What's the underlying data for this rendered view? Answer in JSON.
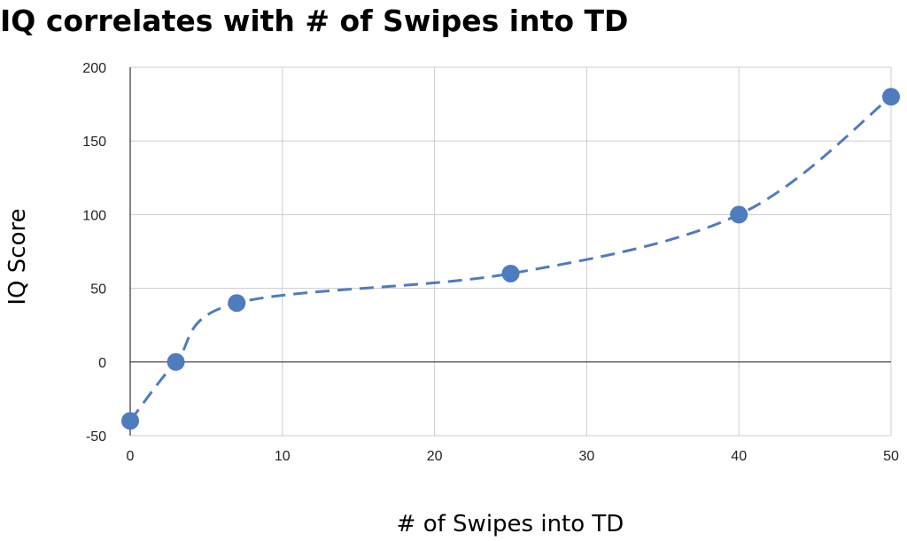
{
  "chart_data": {
    "type": "line",
    "title": "IQ correlates with # of Swipes into TD",
    "xlabel": "# of Swipes into TD",
    "ylabel": "IQ Score",
    "xlim": [
      0,
      50
    ],
    "ylim": [
      -50,
      200
    ],
    "x_ticks": [
      0,
      10,
      20,
      30,
      40,
      50
    ],
    "y_ticks": [
      -50,
      0,
      50,
      100,
      150,
      200
    ],
    "grid": true,
    "line_style": "dashed, smoothed",
    "series": [
      {
        "color": "#4f7bbf",
        "x": [
          0,
          3,
          7,
          25,
          40,
          50
        ],
        "y": [
          -40,
          0,
          40,
          60,
          100,
          180
        ]
      }
    ]
  }
}
